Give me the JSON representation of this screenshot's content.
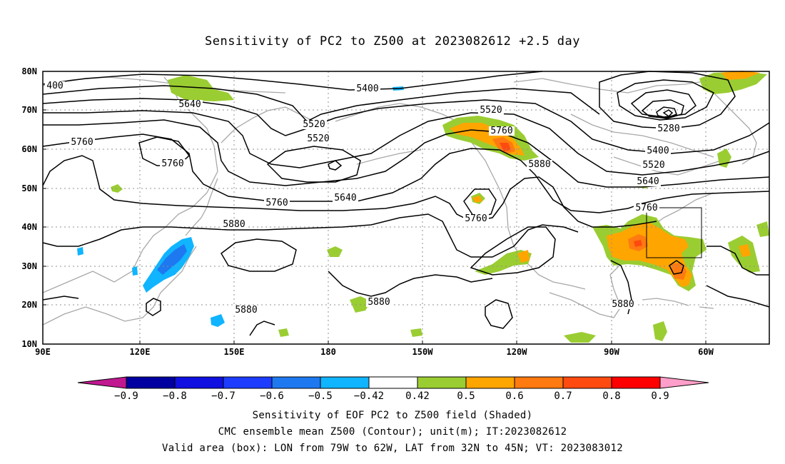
{
  "title": "Sensitivity of PC2 to Z500 at 2023082612 +2.5 day",
  "map": {
    "lat_labels": [
      "80N",
      "70N",
      "60N",
      "50N",
      "40N",
      "30N",
      "20N",
      "10N"
    ],
    "lon_labels": [
      "90E",
      "120E",
      "150E",
      "180",
      "150W",
      "120W",
      "90W",
      "60W"
    ],
    "contour_labels": [
      {
        "text": "400"
      },
      {
        "text": "5400"
      },
      {
        "text": "5640"
      },
      {
        "text": "5520"
      },
      {
        "text": "5520"
      },
      {
        "text": "5520"
      },
      {
        "text": "5760"
      },
      {
        "text": "5760"
      },
      {
        "text": "5760"
      },
      {
        "text": "5640"
      },
      {
        "text": "5760"
      },
      {
        "text": "5880"
      },
      {
        "text": "5880"
      },
      {
        "text": "5880"
      },
      {
        "text": "5280"
      },
      {
        "text": "5400"
      },
      {
        "text": "5520"
      },
      {
        "text": "5640"
      },
      {
        "text": "5760"
      },
      {
        "text": "5880"
      },
      {
        "text": "5760"
      },
      {
        "text": "5880"
      }
    ],
    "valid_box": {
      "lon_from": "79W",
      "lon_to": "62W",
      "lat_from": "32N",
      "lat_to": "45N"
    }
  },
  "colorbar": {
    "labels": [
      "-0.9",
      "-0.8",
      "-0.7",
      "-0.6",
      "-0.5",
      "-0.42",
      "0.42",
      "0.5",
      "0.6",
      "0.7",
      "0.8",
      "0.9"
    ],
    "colors": [
      "#0000a0",
      "#1010e0",
      "#1e3cff",
      "#1e78f0",
      "#10b4ff",
      "#ffffff",
      "#9acd32",
      "#ffa500",
      "#ff7a10",
      "#ff4a10",
      "#ff0000"
    ],
    "low_end_color": "#c01890",
    "high_end_color": "#ff9ec8"
  },
  "footer": {
    "line1": "Sensitivity of EOF PC2 to Z500 field (Shaded)",
    "line2": "CMC ensemble mean Z500 (Contour); unit(m); IT:2023082612",
    "line3": "Valid area (box): LON from 79W to 62W, LAT from 32N to 45N; VT: 2023083012"
  }
}
